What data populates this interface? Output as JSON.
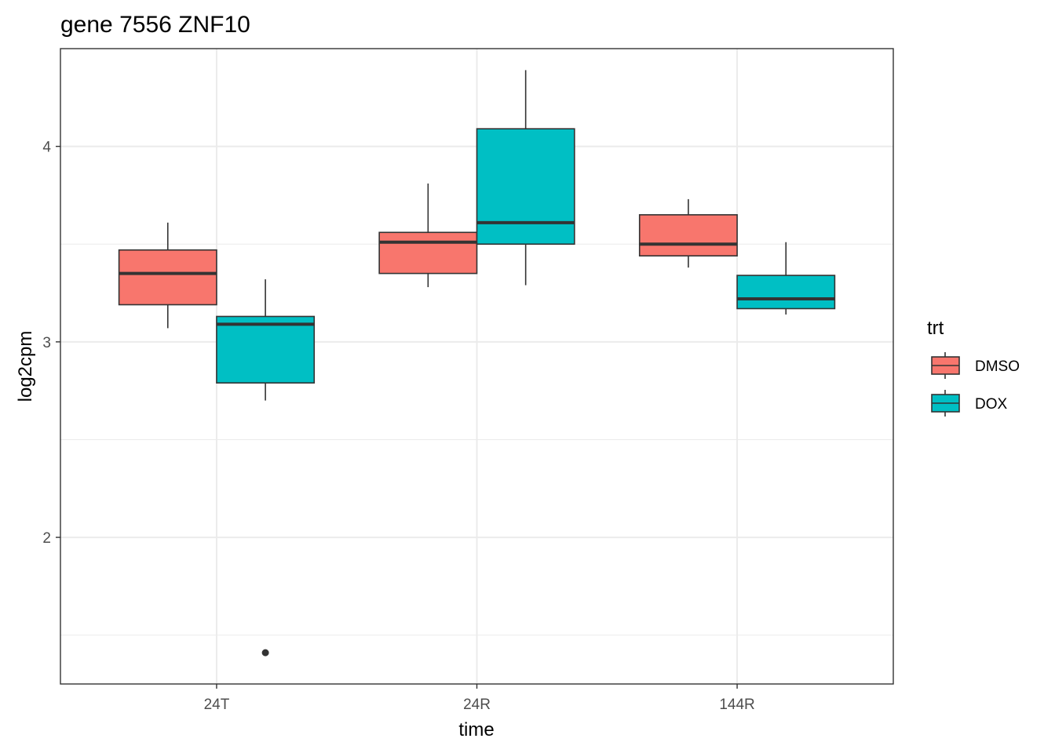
{
  "chart_data": {
    "type": "box",
    "title": "gene 7556 ZNF10",
    "xlabel": "time",
    "ylabel": "log2cpm",
    "categories": [
      "24T",
      "24R",
      "144R"
    ],
    "ylim": [
      1.25,
      4.5
    ],
    "yticks": [
      2,
      3,
      4
    ],
    "grid": true,
    "legend": {
      "title": "trt",
      "position": "right",
      "entries": [
        "DMSO",
        "DOX"
      ]
    },
    "series": [
      {
        "name": "DMSO",
        "color": "#F8766D",
        "boxes": [
          {
            "category": "24T",
            "whisker_low": 3.07,
            "q1": 3.19,
            "median": 3.35,
            "q3": 3.47,
            "whisker_high": 3.61,
            "outliers": []
          },
          {
            "category": "24R",
            "whisker_low": 3.28,
            "q1": 3.35,
            "median": 3.51,
            "q3": 3.56,
            "whisker_high": 3.81,
            "outliers": []
          },
          {
            "category": "144R",
            "whisker_low": 3.38,
            "q1": 3.44,
            "median": 3.5,
            "q3": 3.65,
            "whisker_high": 3.73,
            "outliers": []
          }
        ]
      },
      {
        "name": "DOX",
        "color": "#00BFC4",
        "boxes": [
          {
            "category": "24T",
            "whisker_low": 2.7,
            "q1": 2.79,
            "median": 3.09,
            "q3": 3.13,
            "whisker_high": 3.32,
            "outliers": [
              1.41
            ]
          },
          {
            "category": "24R",
            "whisker_low": 3.29,
            "q1": 3.5,
            "median": 3.61,
            "q3": 4.09,
            "whisker_high": 4.39,
            "outliers": []
          },
          {
            "category": "144R",
            "whisker_low": 3.14,
            "q1": 3.17,
            "median": 3.22,
            "q3": 3.34,
            "whisker_high": 3.51,
            "outliers": []
          }
        ]
      }
    ]
  }
}
